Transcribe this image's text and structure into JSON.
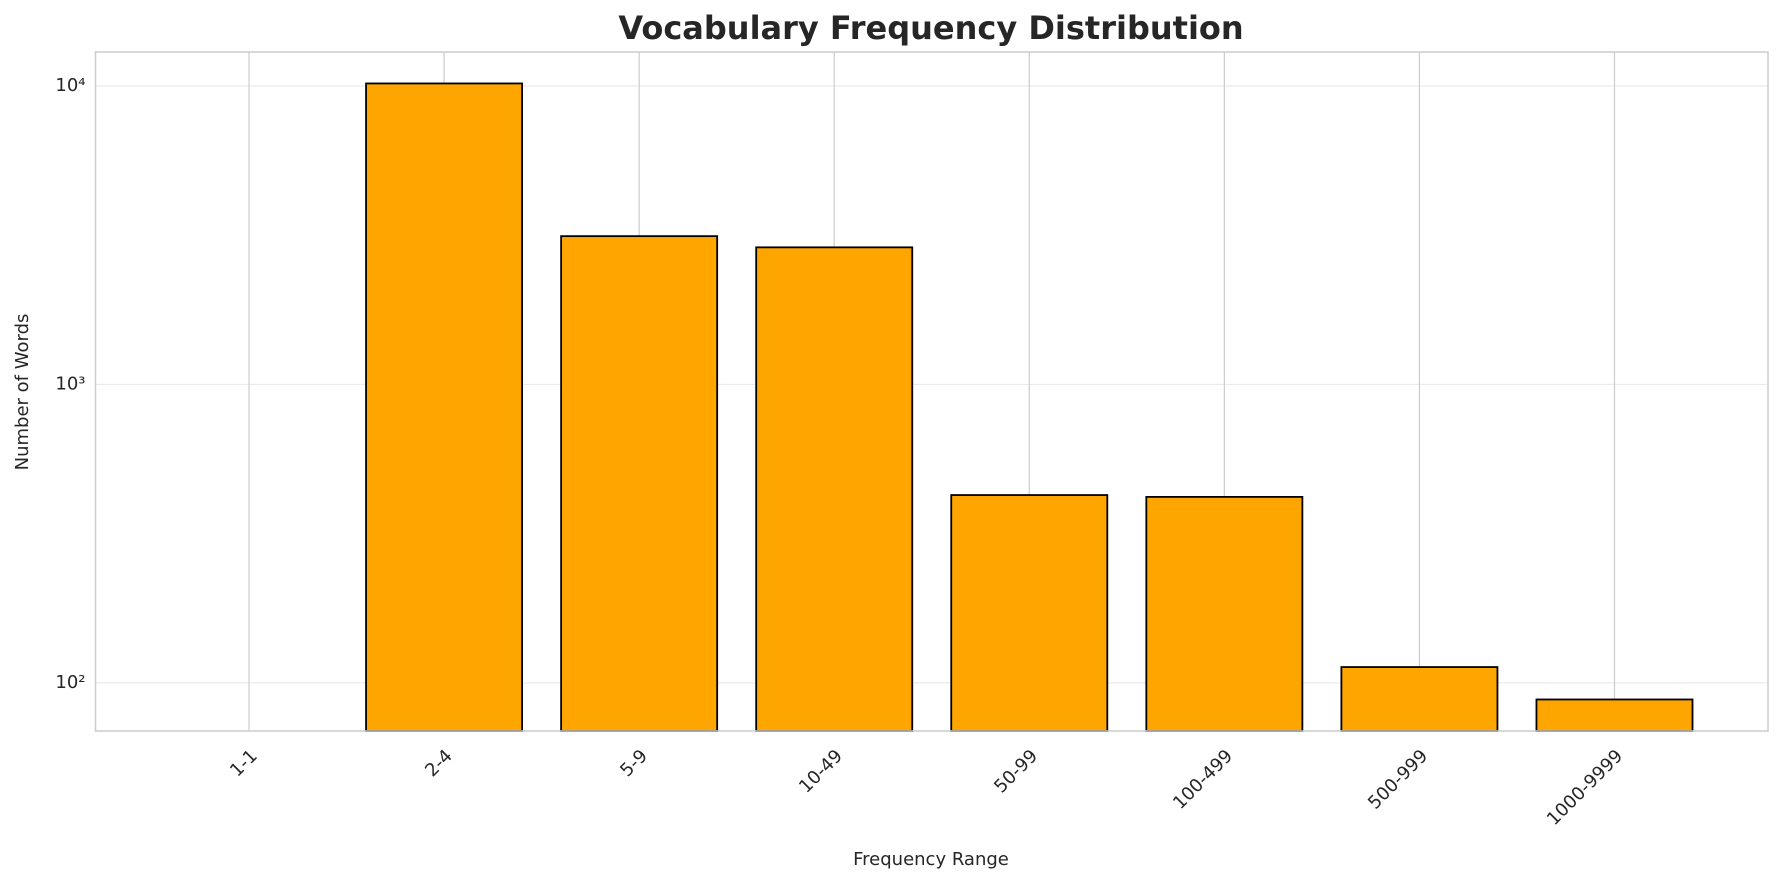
{
  "chart_data": {
    "type": "bar",
    "title": "Vocabulary Frequency Distribution",
    "xlabel": "Frequency Range",
    "ylabel": "Number of Words",
    "categories": [
      "1-1",
      "2-4",
      "5-9",
      "10-49",
      "50-99",
      "100-499",
      "500-999",
      "1000-9999"
    ],
    "values": [
      0,
      10200,
      3140,
      2880,
      426,
      420,
      113,
      88
    ],
    "color": "#ffa500",
    "edgecolor": "#000000",
    "log_scale": true,
    "ylim": [
      69,
      13000
    ],
    "yticks": [
      {
        "value": 100,
        "label": "10²"
      },
      {
        "value": 1000,
        "label": "10³"
      },
      {
        "value": 10000,
        "label": "10⁴"
      }
    ],
    "grid": true
  }
}
